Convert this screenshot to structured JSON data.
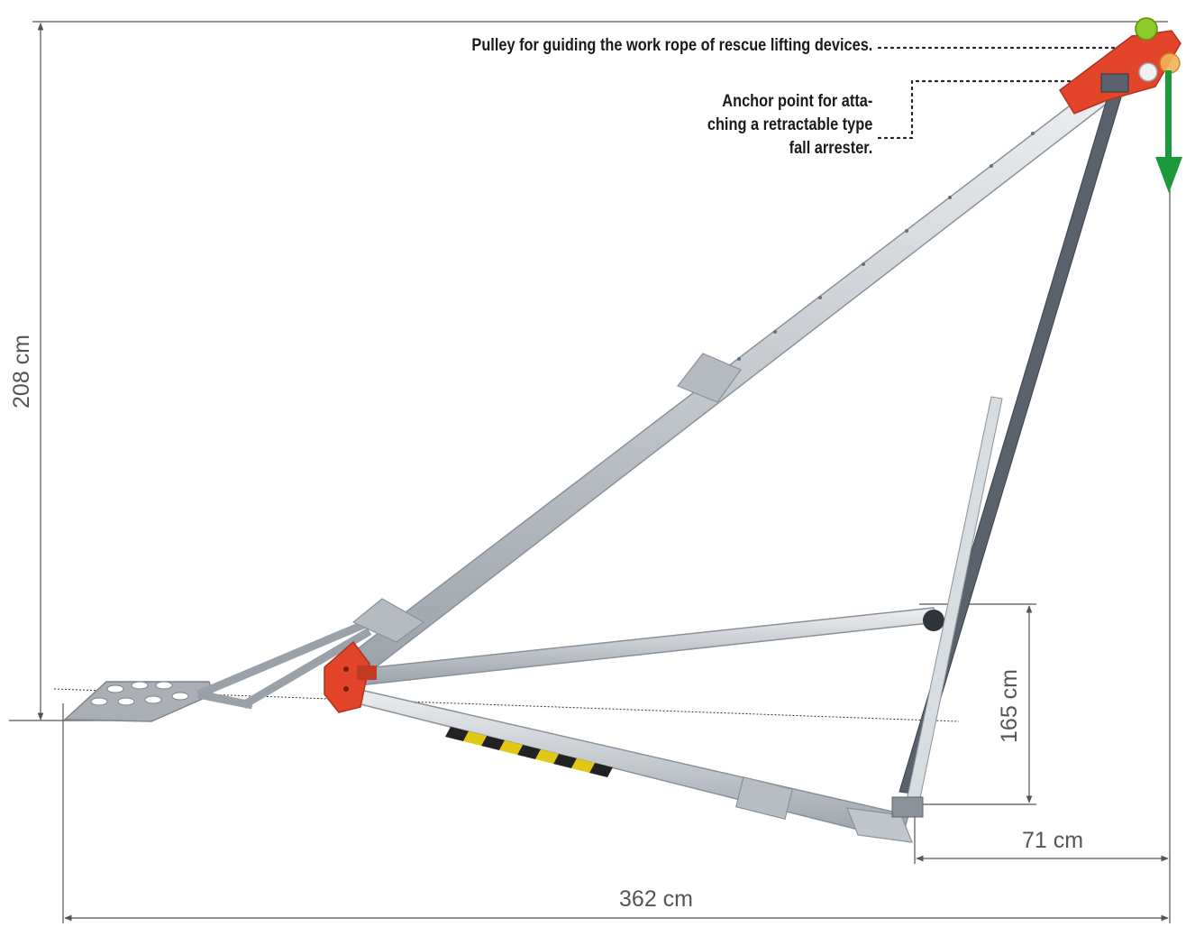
{
  "callouts": {
    "pulley": "Pulley for guiding the work rope of rescue lifting devices.",
    "anchor_line1": "Anchor point for atta-",
    "anchor_line2": "ching a retractable type",
    "anchor_line3": "fall arrester."
  },
  "dimensions": {
    "height": "208 cm",
    "base_height": "165 cm",
    "offset": "71 cm",
    "total_length": "362 cm"
  },
  "colors": {
    "frame_red": "#e2452a",
    "aluminium": "#c9ced3",
    "dark_pole": "#4c5560",
    "load_arrow": "#1a9a3a",
    "dimension_line": "#555555"
  }
}
